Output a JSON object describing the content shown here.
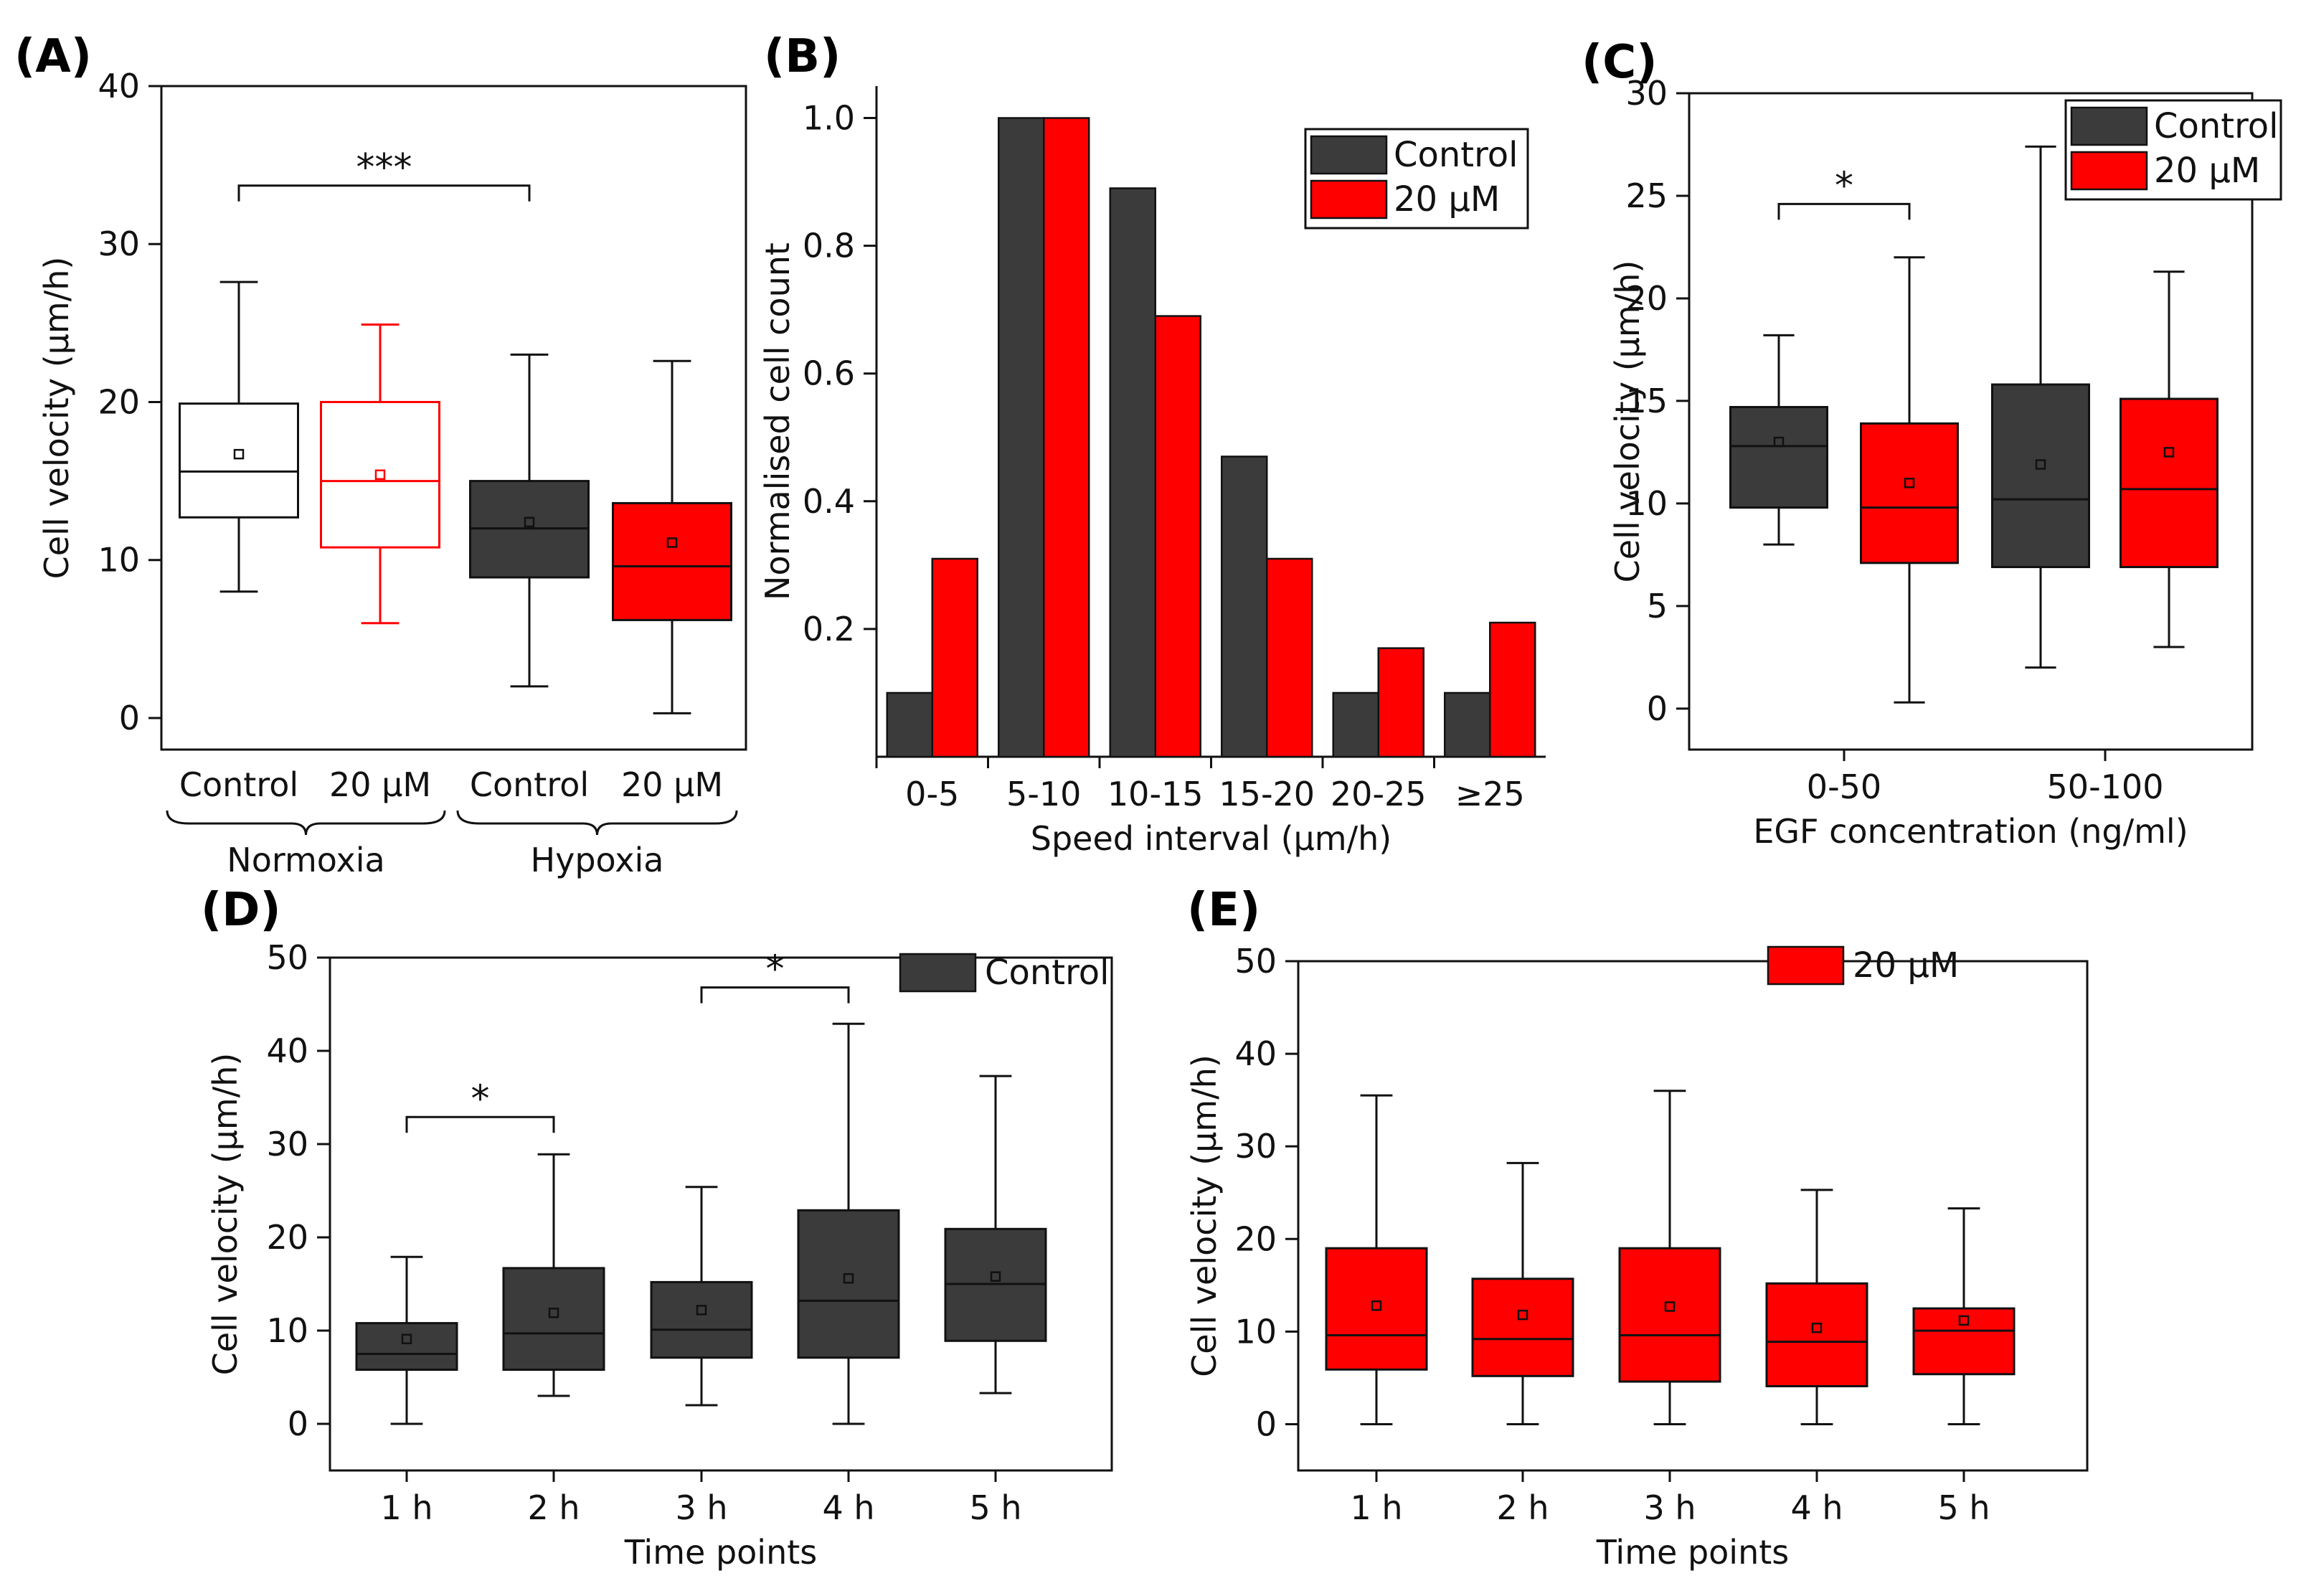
{
  "colors": {
    "control": "#3b3b3b",
    "treated": "#ff0000",
    "axis": "#111111"
  },
  "chart_data": [
    {
      "id": "A",
      "label": "(A)",
      "type": "box",
      "ylabel": "Cell velocity (µm/h)",
      "ylim": [
        -2,
        40
      ],
      "yticks": [
        0,
        10,
        20,
        30,
        40
      ],
      "boxes": [
        {
          "label": "Control",
          "style": "outline-black",
          "whisker_low": 8,
          "q1": 12.7,
          "median": 15.6,
          "q3": 19.9,
          "whisker_high": 27.6,
          "mean": 16.7
        },
        {
          "label": "20 µM",
          "style": "outline-red",
          "whisker_low": 6,
          "q1": 10.8,
          "median": 15.0,
          "q3": 20.0,
          "whisker_high": 24.9,
          "mean": 15.4
        },
        {
          "label": "Control",
          "style": "fill-control",
          "whisker_low": 2,
          "q1": 8.9,
          "median": 12.0,
          "q3": 15.0,
          "whisker_high": 23.0,
          "mean": 12.4
        },
        {
          "label": "20 µM",
          "style": "fill-treated",
          "whisker_low": 0.3,
          "q1": 6.2,
          "median": 9.6,
          "q3": 13.6,
          "whisker_high": 22.6,
          "mean": 11.1
        }
      ],
      "groups": [
        {
          "label": "Normoxia",
          "members": [
            0,
            1
          ]
        },
        {
          "label": "Hypoxia",
          "members": [
            2,
            3
          ]
        }
      ],
      "significance": [
        {
          "from": 0,
          "to": 2,
          "label": "***",
          "y": 33.7
        }
      ]
    },
    {
      "id": "B",
      "label": "(B)",
      "type": "bar",
      "xlabel": "Speed interval (µm/h)",
      "ylabel": "Normalised cell count",
      "ylim": [
        0,
        1.05
      ],
      "yticks": [
        0.2,
        0.4,
        0.6,
        0.8,
        1.0
      ],
      "categories": [
        "0-5",
        "5-10",
        "10-15",
        "15-20",
        "20-25",
        "≥25"
      ],
      "series": [
        {
          "name": "Control",
          "color": "control",
          "values": [
            0.1,
            1.0,
            0.89,
            0.47,
            0.1,
            0.1
          ]
        },
        {
          "name": "20 µM",
          "color": "treated",
          "values": [
            0.31,
            1.0,
            0.69,
            0.31,
            0.17,
            0.21
          ]
        }
      ],
      "legend": [
        {
          "name": "Control",
          "color": "control"
        },
        {
          "name": "20 µM",
          "color": "treated"
        }
      ]
    },
    {
      "id": "C",
      "label": "(C)",
      "type": "box",
      "xlabel": "EGF concentration (ng/ml)",
      "ylabel": "Cell velocity (µm/h)",
      "ylim": [
        -2,
        30
      ],
      "yticks": [
        0,
        5,
        10,
        15,
        20,
        25,
        30
      ],
      "categories": [
        "0-50",
        "50-100"
      ],
      "boxes": [
        {
          "category": 0,
          "style": "fill-control",
          "whisker_low": 8,
          "q1": 9.8,
          "median": 12.8,
          "q3": 14.7,
          "whisker_high": 18.2,
          "mean": 13.0
        },
        {
          "category": 0,
          "style": "fill-treated",
          "whisker_low": 0.3,
          "q1": 7.1,
          "median": 9.8,
          "q3": 13.9,
          "whisker_high": 22.0,
          "mean": 11.0
        },
        {
          "category": 1,
          "style": "fill-control",
          "whisker_low": 2,
          "q1": 6.9,
          "median": 10.2,
          "q3": 15.8,
          "whisker_high": 27.4,
          "mean": 11.9
        },
        {
          "category": 1,
          "style": "fill-treated",
          "whisker_low": 3,
          "q1": 6.9,
          "median": 10.7,
          "q3": 15.1,
          "whisker_high": 21.3,
          "mean": 12.5
        }
      ],
      "significance": [
        {
          "from": 0,
          "to": 1,
          "label": "*",
          "y": 24.6
        }
      ],
      "legend": [
        {
          "name": "Control",
          "color": "control"
        },
        {
          "name": "20 µM",
          "color": "treated"
        }
      ]
    },
    {
      "id": "D",
      "label": "(D)",
      "type": "box",
      "xlabel": "Time points",
      "ylabel": "Cell velocity (µm/h)",
      "ylim": [
        -5,
        50
      ],
      "yticks": [
        0,
        10,
        20,
        30,
        40,
        50
      ],
      "categories": [
        "1 h",
        "2 h",
        "3 h",
        "4 h",
        "5 h"
      ],
      "boxes": [
        {
          "category": 0,
          "style": "fill-control",
          "whisker_low": 0,
          "q1": 5.8,
          "median": 7.5,
          "q3": 10.8,
          "whisker_high": 17.9,
          "mean": 9.1
        },
        {
          "category": 1,
          "style": "fill-control",
          "whisker_low": 3,
          "q1": 5.8,
          "median": 9.7,
          "q3": 16.7,
          "whisker_high": 28.9,
          "mean": 11.9
        },
        {
          "category": 2,
          "style": "fill-control",
          "whisker_low": 2,
          "q1": 7.1,
          "median": 10.1,
          "q3": 15.2,
          "whisker_high": 25.4,
          "mean": 12.2
        },
        {
          "category": 3,
          "style": "fill-control",
          "whisker_low": 0,
          "q1": 7.1,
          "median": 13.2,
          "q3": 22.9,
          "whisker_high": 42.9,
          "mean": 15.6
        },
        {
          "category": 4,
          "style": "fill-control",
          "whisker_low": 3.3,
          "q1": 8.9,
          "median": 15.0,
          "q3": 20.9,
          "whisker_high": 37.3,
          "mean": 15.8
        }
      ],
      "significance": [
        {
          "from": 0,
          "to": 1,
          "label": "*",
          "y": 32.9
        },
        {
          "from": 2,
          "to": 3,
          "label": "*",
          "y": 46.8
        }
      ],
      "legend": [
        {
          "name": "Control",
          "color": "control"
        }
      ]
    },
    {
      "id": "E",
      "label": "(E)",
      "type": "box",
      "xlabel": "Time points",
      "ylabel": "Cell velocity (µm/h)",
      "ylim": [
        -5,
        50
      ],
      "yticks": [
        0,
        10,
        20,
        30,
        40,
        50
      ],
      "categories": [
        "1 h",
        "2 h",
        "3 h",
        "4 h",
        "5 h"
      ],
      "boxes": [
        {
          "category": 0,
          "style": "fill-treated",
          "whisker_low": 0,
          "q1": 5.9,
          "median": 9.6,
          "q3": 19.0,
          "whisker_high": 35.5,
          "mean": 12.8
        },
        {
          "category": 1,
          "style": "fill-treated",
          "whisker_low": 0,
          "q1": 5.2,
          "median": 9.2,
          "q3": 15.7,
          "whisker_high": 28.2,
          "mean": 11.8
        },
        {
          "category": 2,
          "style": "fill-treated",
          "whisker_low": 0,
          "q1": 4.6,
          "median": 9.6,
          "q3": 19.0,
          "whisker_high": 36.0,
          "mean": 12.7
        },
        {
          "category": 3,
          "style": "fill-treated",
          "whisker_low": 0,
          "q1": 4.1,
          "median": 8.9,
          "q3": 15.2,
          "whisker_high": 25.3,
          "mean": 10.4
        },
        {
          "category": 4,
          "style": "fill-treated",
          "whisker_low": 0,
          "q1": 5.4,
          "median": 10.1,
          "q3": 12.5,
          "whisker_high": 23.3,
          "mean": 11.2
        }
      ],
      "legend": [
        {
          "name": "20 µM",
          "color": "treated"
        }
      ]
    }
  ]
}
